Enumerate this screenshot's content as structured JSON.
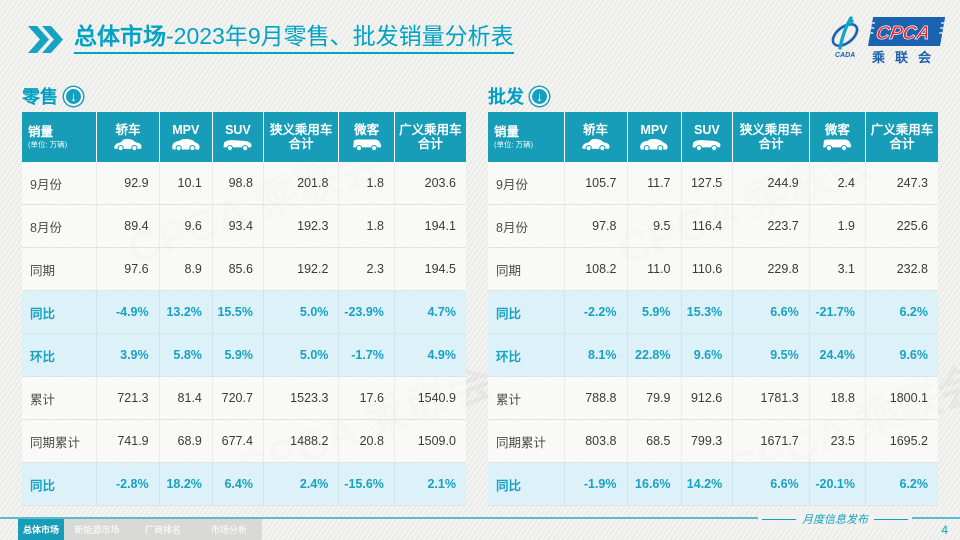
{
  "title": {
    "section": "总体市场",
    "rest": "-2023年9月零售、批发销量分析表"
  },
  "logo": {
    "cpca": "CPCA",
    "cn_name": "乘联会",
    "sub": "CADA",
    "watermark": "CPCA 乘联会"
  },
  "unit_note": "(单位: 万辆)",
  "columns": [
    {
      "id": "sales",
      "label": "销量",
      "note": "(单位: 万辆)"
    },
    {
      "id": "sedan",
      "label": "轿车",
      "icon": "car"
    },
    {
      "id": "mpv",
      "label": "MPV",
      "icon": "mpv"
    },
    {
      "id": "suv",
      "label": "SUV",
      "icon": "suv"
    },
    {
      "id": "narrow-pv-total",
      "label": "狭义乘用车\n合计"
    },
    {
      "id": "microvan",
      "label": "微客",
      "icon": "van"
    },
    {
      "id": "broad-pv-total",
      "label": "广义乘用车\n合计"
    }
  ],
  "tables": [
    {
      "id": "retail",
      "label": "零售",
      "rows": [
        {
          "label": "9月份",
          "type": "data",
          "values": [
            "92.9",
            "10.1",
            "98.8",
            "201.8",
            "1.8",
            "203.6"
          ]
        },
        {
          "label": "8月份",
          "type": "data",
          "values": [
            "89.4",
            "9.6",
            "93.4",
            "192.3",
            "1.8",
            "194.1"
          ]
        },
        {
          "label": "同期",
          "type": "data",
          "values": [
            "97.6",
            "8.9",
            "85.6",
            "192.2",
            "2.3",
            "194.5"
          ]
        },
        {
          "label": "同比",
          "type": "pct",
          "values": [
            "-4.9%",
            "13.2%",
            "15.5%",
            "5.0%",
            "-23.9%",
            "4.7%"
          ]
        },
        {
          "label": "环比",
          "type": "pct",
          "values": [
            "3.9%",
            "5.8%",
            "5.9%",
            "5.0%",
            "-1.7%",
            "4.9%"
          ]
        },
        {
          "label": "累计",
          "type": "data",
          "values": [
            "721.3",
            "81.4",
            "720.7",
            "1523.3",
            "17.6",
            "1540.9"
          ]
        },
        {
          "label": "同期累计",
          "type": "data",
          "values": [
            "741.9",
            "68.9",
            "677.4",
            "1488.2",
            "20.8",
            "1509.0"
          ]
        },
        {
          "label": "同比",
          "type": "pct",
          "values": [
            "-2.8%",
            "18.2%",
            "6.4%",
            "2.4%",
            "-15.6%",
            "2.1%"
          ]
        }
      ]
    },
    {
      "id": "wholesale",
      "label": "批发",
      "rows": [
        {
          "label": "9月份",
          "type": "data",
          "values": [
            "105.7",
            "11.7",
            "127.5",
            "244.9",
            "2.4",
            "247.3"
          ]
        },
        {
          "label": "8月份",
          "type": "data",
          "values": [
            "97.8",
            "9.5",
            "116.4",
            "223.7",
            "1.9",
            "225.6"
          ]
        },
        {
          "label": "同期",
          "type": "data",
          "values": [
            "108.2",
            "11.0",
            "110.6",
            "229.8",
            "3.1",
            "232.8"
          ]
        },
        {
          "label": "同比",
          "type": "pct",
          "values": [
            "-2.2%",
            "5.9%",
            "15.3%",
            "6.6%",
            "-21.7%",
            "6.2%"
          ]
        },
        {
          "label": "环比",
          "type": "pct",
          "values": [
            "8.1%",
            "22.8%",
            "9.6%",
            "9.5%",
            "24.4%",
            "9.6%"
          ]
        },
        {
          "label": "累计",
          "type": "data",
          "values": [
            "788.8",
            "79.9",
            "912.6",
            "1781.3",
            "18.8",
            "1800.1"
          ]
        },
        {
          "label": "同期累计",
          "type": "data",
          "values": [
            "803.8",
            "68.5",
            "799.3",
            "1671.7",
            "23.5",
            "1695.2"
          ]
        },
        {
          "label": "同比",
          "type": "pct",
          "values": [
            "-1.9%",
            "16.6%",
            "14.2%",
            "6.6%",
            "-20.1%",
            "6.2%"
          ]
        }
      ]
    }
  ],
  "footer": {
    "tabs": [
      {
        "label": "总体市场",
        "active": true
      },
      {
        "label": "新能源市场",
        "active": false
      },
      {
        "label": "厂商排名",
        "active": false
      },
      {
        "label": "市场分析",
        "active": false
      }
    ],
    "publish_label": "月度信息发布",
    "page_number": "4"
  }
}
